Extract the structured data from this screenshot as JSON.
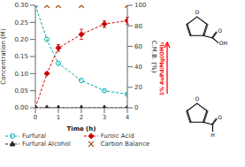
{
  "chart_data": {
    "type": "line",
    "x": [
      0,
      0.5,
      1,
      2,
      3,
      4
    ],
    "xlabel": "Time (h)",
    "ylabel": "Concentration (M)",
    "y2label": "C.M.B. (%)",
    "xlim": [
      0,
      4
    ],
    "xticks": [
      0,
      1,
      2,
      3,
      4
    ],
    "ylim": [
      0.0,
      0.3
    ],
    "yticks": [
      {
        "value": 0.0,
        "label": "0.00"
      },
      0.05,
      {
        "value": 0.1,
        "label": "0.10"
      },
      0.15,
      {
        "value": 0.2,
        "label": "0.20"
      },
      0.25,
      {
        "value": 0.3,
        "label": "0.30"
      }
    ],
    "y2lim": [
      0,
      100
    ],
    "y2ticks": [
      0,
      20,
      40,
      60,
      80,
      100
    ],
    "grid": false,
    "legend": "bottom",
    "series": [
      {
        "name": "Furfural",
        "color": "#00aaaa",
        "values": [
          0.3,
          0.2,
          0.13,
          0.08,
          0.05,
          0.04
        ],
        "marker": "circle",
        "line_style": "dashed"
      },
      {
        "name": "Furoic Acid",
        "color": "#cc0000",
        "values": [
          0.0,
          0.1,
          0.175,
          0.215,
          0.245,
          0.255
        ],
        "error": [
          0.0,
          0.0,
          0.01,
          0.015,
          0.01,
          0.01
        ],
        "marker": "diamond",
        "line_style": "dashed"
      },
      {
        "name": "Furfural Alcohol",
        "color": "#222222",
        "values": [
          0.0,
          0.0,
          0.0,
          0.0,
          0.0,
          0.0
        ],
        "marker": "triangle",
        "line_style": "dashed"
      },
      {
        "name": "Carbon Balance",
        "type": "scatter",
        "axis": "y2",
        "color": "#994400",
        "x": [
          0.5,
          1,
          2,
          4
        ],
        "values": [
          100,
          100,
          100,
          100
        ],
        "marker": "x"
      }
    ],
    "annotations": [
      "O",
      "O",
      "OH",
      "O",
      "O",
      "H",
      "1% AuPd/Mg(OH)₂"
    ]
  }
}
